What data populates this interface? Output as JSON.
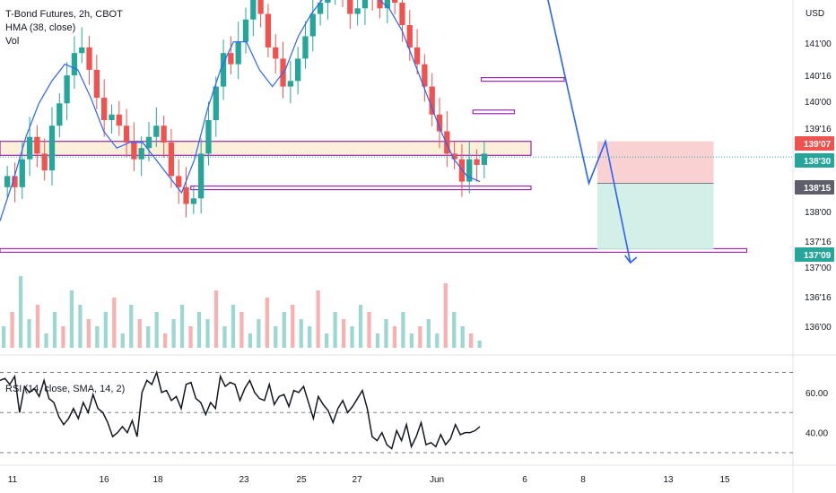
{
  "legend": {
    "title": "T-Bond Futures, 2h, CBOT",
    "hma": "HMA (38, close)",
    "vol": "Vol",
    "rsi": "RSI (14, close, SMA, 14, 2)"
  },
  "colors": {
    "bull": "#26a69a",
    "bear": "#ef5350",
    "hma": "#2962ff",
    "zone": "#9c27b0",
    "stop_zone": "#f7c5c8",
    "target_zone": "#cdeee6",
    "projection": "#2962ff",
    "rsi_line": "#131722",
    "last_price_line": "#26a69a"
  },
  "chart_data": [
    {
      "type": "candlestick",
      "title": "T-Bond Futures, 2h, CBOT",
      "currency": "USD",
      "y_axis_ticks": [
        "141'00",
        "140'16",
        "140'00",
        "139'16",
        "138'00",
        "137'16",
        "137'00",
        "136'16",
        "136'00"
      ],
      "ylim": [
        135.8,
        141.5
      ],
      "x_axis_ticks": [
        "11",
        "16",
        "18",
        "23",
        "25",
        "27",
        "Jun",
        "6",
        "8",
        "13",
        "15"
      ],
      "price_labels": [
        {
          "text": "139'07",
          "value": 139.22,
          "color": "#ef5350"
        },
        {
          "text": "138'30",
          "value": 138.94,
          "color": "#26a69a"
        },
        {
          "text": "138'15",
          "value": 138.47,
          "color": "#5d606b"
        },
        {
          "text": "137'09",
          "value": 137.28,
          "color": "#26a69a"
        }
      ],
      "closes": [
        138.6,
        138.4,
        138.9,
        139.3,
        139.0,
        138.7,
        139.5,
        139.9,
        140.4,
        140.8,
        140.9,
        140.5,
        140.0,
        139.6,
        139.7,
        139.5,
        139.2,
        138.9,
        139.1,
        139.3,
        139.5,
        139.2,
        138.6,
        138.4,
        138.1,
        138.2,
        139.0,
        139.6,
        140.2,
        140.8,
        140.6,
        141.0,
        141.4,
        141.9,
        141.5,
        140.9,
        140.7,
        140.2,
        140.3,
        140.7,
        141.1,
        141.5,
        141.7,
        141.9,
        142.0,
        141.8,
        141.5,
        141.6,
        141.9,
        141.8,
        141.6,
        141.9,
        141.7,
        141.3,
        140.9,
        140.6,
        140.2,
        139.7,
        139.4,
        139.0,
        138.9,
        138.5,
        138.9,
        138.8,
        139.0
      ],
      "hma": [
        137.8,
        138.5,
        139.3,
        139.9,
        140.3,
        140.6,
        140.5,
        140.0,
        139.4,
        139.1,
        139.2,
        139.2,
        138.9,
        138.6,
        138.3,
        138.9,
        139.8,
        140.5,
        141.0,
        141.0,
        140.5,
        140.2,
        140.5,
        141.1,
        141.5,
        141.8,
        141.9,
        141.9,
        141.8,
        141.8,
        141.6,
        141.2,
        140.6,
        140.0,
        139.4,
        138.9,
        138.6,
        138.5
      ],
      "volume": [
        0.3,
        0.5,
        1.0,
        0.4,
        0.6,
        0.2,
        0.5,
        0.3,
        0.8,
        0.6,
        0.4,
        0.3,
        0.5,
        0.7,
        0.2,
        0.6,
        0.4,
        0.3,
        0.5,
        0.2,
        0.4,
        0.6,
        0.3,
        0.5,
        0.4,
        0.8,
        0.3,
        0.6,
        0.5,
        0.2,
        0.4,
        0.7,
        0.3,
        0.5,
        0.6,
        0.4,
        0.3,
        0.8,
        0.2,
        0.5,
        0.4,
        0.3,
        0.6,
        0.5,
        0.2,
        0.4,
        0.3,
        0.5,
        0.2,
        0.3,
        0.4,
        0.2,
        0.9,
        0.5,
        0.3,
        0.2,
        0.1
      ],
      "zones": [
        {
          "from": 138.97,
          "to": 139.22,
          "x_from": 0,
          "x_to": 64,
          "fill": true
        },
        {
          "from": 138.36,
          "to": 138.42,
          "x_from": 23,
          "x_to": 64,
          "fill": false
        },
        {
          "from": 137.24,
          "to": 137.3,
          "x_from": 0,
          "x_to": 90,
          "fill": false
        },
        {
          "from": 140.3,
          "to": 140.36,
          "x_from": 58,
          "x_to": 68,
          "fill": false
        },
        {
          "from": 139.72,
          "to": 139.78,
          "x_from": 57,
          "x_to": 62,
          "fill": false
        }
      ],
      "position": {
        "entry": 138.47,
        "stop": 139.22,
        "target": 137.28,
        "x_from": 72,
        "x_to": 86
      },
      "projection": [
        [
          73,
          141.8
        ],
        [
          78,
          138.47
        ],
        [
          80,
          139.22
        ],
        [
          83,
          137.05
        ]
      ]
    },
    {
      "type": "line",
      "title": "RSI (14, close, SMA, 14, 2)",
      "y_axis_ticks": [
        "60.00",
        "40.00"
      ],
      "levels": [
        70,
        50,
        30
      ],
      "ylim": [
        26,
        76
      ],
      "values": [
        66,
        67,
        64,
        68,
        50,
        63,
        60,
        62,
        58,
        66,
        57,
        55,
        48,
        44,
        47,
        52,
        47,
        55,
        50,
        59,
        52,
        50,
        45,
        38,
        40,
        43,
        40,
        46,
        38,
        60,
        66,
        64,
        70,
        60,
        61,
        56,
        58,
        52,
        64,
        65,
        57,
        55,
        49,
        55,
        52,
        68,
        63,
        65,
        64,
        56,
        62,
        66,
        60,
        57,
        56,
        64,
        54,
        58,
        59,
        53,
        61,
        60,
        63,
        55,
        47,
        58,
        54,
        51,
        45,
        52,
        56,
        50,
        53,
        57,
        61,
        52,
        38,
        36,
        40,
        34,
        32,
        41,
        36,
        44,
        33,
        38,
        45,
        34,
        35,
        33,
        39,
        34,
        37,
        44,
        39,
        40,
        40,
        41,
        43
      ]
    }
  ]
}
